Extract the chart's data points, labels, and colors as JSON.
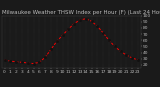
{
  "title": "Milwaukee Weather THSW Index per Hour (F) (Last 24 Hours)",
  "hours": [
    0,
    1,
    2,
    3,
    4,
    5,
    6,
    7,
    8,
    9,
    10,
    11,
    12,
    13,
    14,
    15,
    16,
    17,
    18,
    19,
    20,
    21,
    22,
    23
  ],
  "values": [
    28,
    26,
    25,
    24,
    23,
    22,
    24,
    32,
    45,
    58,
    68,
    78,
    87,
    93,
    95,
    91,
    83,
    72,
    60,
    50,
    42,
    36,
    31,
    28
  ],
  "bg_color": "#1a1a1a",
  "plot_bg_color": "#1a1a1a",
  "line_color": "#ff0000",
  "marker_color": "#111111",
  "grid_color": "#444444",
  "text_color": "#bbbbbb",
  "ylim": [
    15,
    100
  ],
  "yticks": [
    20,
    30,
    40,
    50,
    60,
    70,
    80,
    90,
    100
  ],
  "title_fontsize": 4.0,
  "tick_fontsize": 3.2
}
